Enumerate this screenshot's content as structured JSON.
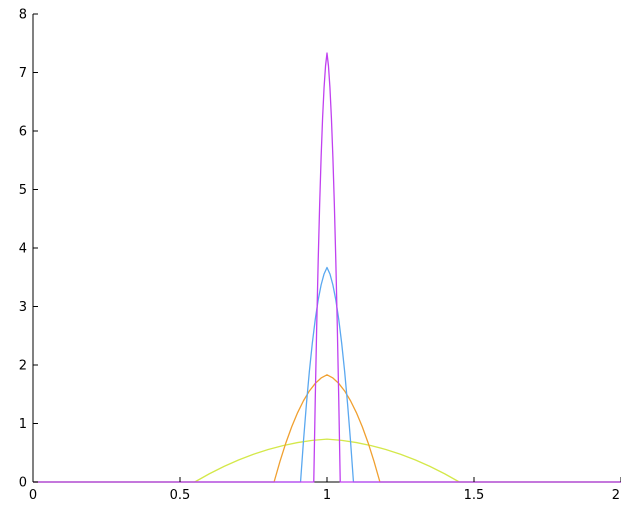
{
  "chart_data": {
    "type": "line",
    "title": "",
    "xlabel": "",
    "ylabel": "",
    "xlim": [
      0,
      2
    ],
    "ylim": [
      0,
      8
    ],
    "grid": false,
    "xticks": [
      0,
      0.5,
      1,
      1.5,
      2
    ],
    "xtick_labels": [
      "0",
      "0.5",
      "1",
      "1.5",
      "2"
    ],
    "yticks": [
      0,
      1,
      2,
      3,
      4,
      5,
      6,
      7,
      8
    ],
    "ytick_labels": [
      "0",
      "1",
      "2",
      "3",
      "4",
      "5",
      "6",
      "7",
      "8"
    ],
    "series": [
      {
        "color": "#d4e84a",
        "x": [
          0,
          0.55,
          0.6,
          0.65,
          0.7,
          0.75,
          0.8,
          0.85,
          0.9,
          0.95,
          1.0,
          1.05,
          1.1,
          1.15,
          1.2,
          1.25,
          1.3,
          1.35,
          1.4,
          1.45,
          2
        ],
        "y": [
          0,
          0,
          0.141,
          0.267,
          0.378,
          0.474,
          0.556,
          0.622,
          0.674,
          0.711,
          0.733,
          0.711,
          0.674,
          0.622,
          0.556,
          0.474,
          0.378,
          0.267,
          0.141,
          0,
          0
        ]
      },
      {
        "color": "#f0a030",
        "x": [
          0,
          0.82,
          0.84,
          0.86,
          0.88,
          0.9,
          0.92,
          0.94,
          0.96,
          0.98,
          1.0,
          1.02,
          1.04,
          1.06,
          1.08,
          1.1,
          1.12,
          1.14,
          1.16,
          1.18,
          2
        ],
        "y": [
          0,
          0,
          0.351,
          0.667,
          0.944,
          1.185,
          1.389,
          1.556,
          1.685,
          1.778,
          1.833,
          1.778,
          1.685,
          1.556,
          1.389,
          1.185,
          0.944,
          0.667,
          0.351,
          0,
          0
        ]
      },
      {
        "color": "#5aa8f0",
        "x": [
          0,
          0.91,
          0.92,
          0.93,
          0.94,
          0.95,
          0.96,
          0.97,
          0.98,
          0.99,
          1.0,
          1.01,
          1.02,
          1.03,
          1.04,
          1.05,
          1.06,
          1.07,
          1.08,
          1.09,
          2
        ],
        "y": [
          0,
          0,
          0.702,
          1.333,
          1.889,
          2.37,
          2.778,
          3.111,
          3.37,
          3.556,
          3.667,
          3.556,
          3.37,
          3.111,
          2.778,
          2.37,
          1.889,
          1.333,
          0.702,
          0,
          0
        ]
      },
      {
        "color": "#c040f0",
        "x": [
          0,
          0.955,
          0.96,
          0.965,
          0.97,
          0.975,
          0.98,
          0.985,
          0.99,
          0.995,
          1.0,
          1.005,
          1.01,
          1.015,
          1.02,
          1.025,
          1.03,
          1.035,
          1.04,
          1.045,
          2
        ],
        "y": [
          0,
          0,
          1.405,
          2.667,
          3.778,
          4.741,
          5.556,
          6.222,
          6.741,
          7.111,
          7.333,
          7.111,
          6.741,
          6.222,
          5.556,
          4.741,
          3.778,
          2.667,
          1.405,
          0,
          0
        ]
      }
    ]
  }
}
